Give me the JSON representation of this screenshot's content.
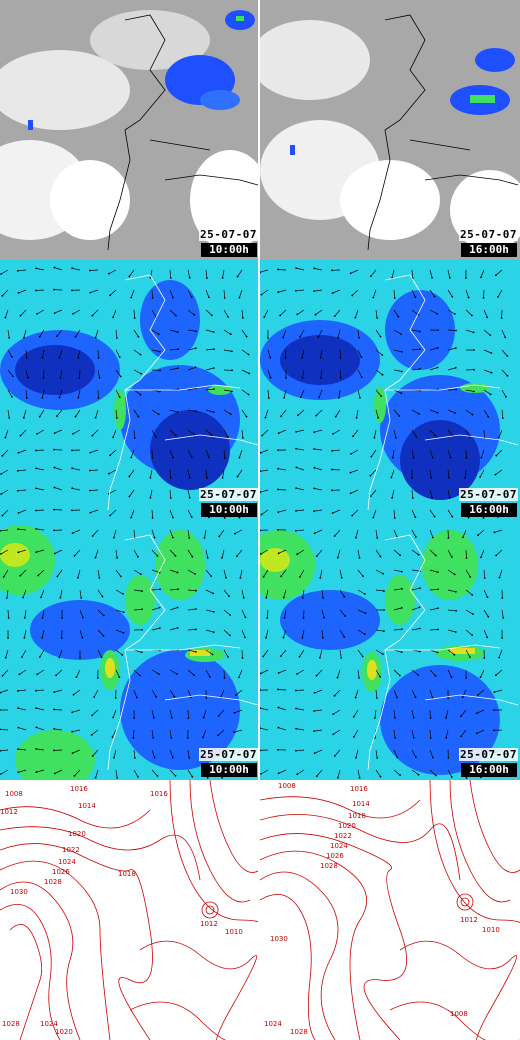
{
  "rows": [
    {
      "id": "satellite",
      "panels": [
        {
          "date": "25-07-07",
          "time": "10:00h"
        },
        {
          "date": "25-07-07",
          "time": "16:00h"
        }
      ]
    },
    {
      "id": "wind-10m",
      "panels": [
        {
          "date": "25-07-07",
          "time": "10:00h"
        },
        {
          "date": "25-07-07",
          "time": "16:00h"
        }
      ]
    },
    {
      "id": "wind-altitude",
      "panels": [
        {
          "date": "25-07-07",
          "time": "10:00h"
        },
        {
          "date": "25-07-07",
          "time": "16:00h"
        }
      ]
    },
    {
      "id": "pressure",
      "panels": [
        {
          "labels": [
            "1008",
            "1016",
            "1014",
            "1012",
            "1020",
            "1022",
            "1024",
            "1026",
            "1028",
            "1030",
            "1018",
            "1016",
            "1012",
            "1010",
            "1024",
            "1028",
            "1020"
          ]
        },
        {
          "labels": [
            "1008",
            "1016",
            "1014",
            "1018",
            "1020",
            "1022",
            "1024",
            "1026",
            "1028",
            "1030",
            "1012",
            "1010",
            "1024",
            "1028",
            "1008"
          ]
        }
      ]
    }
  ],
  "colors": {
    "satellite_bg": "#a8a8a8",
    "cloud": "#ffffff",
    "precip_blue": "#1e50ff",
    "wind_cyan": "#2ad4e6",
    "wind_blue": "#1e64ff",
    "wind_dark": "#1030c0",
    "wind_green": "#40e060",
    "wind_yellow": "#e0e020",
    "isobar": "#cc0000",
    "coast": "#ffffff"
  }
}
